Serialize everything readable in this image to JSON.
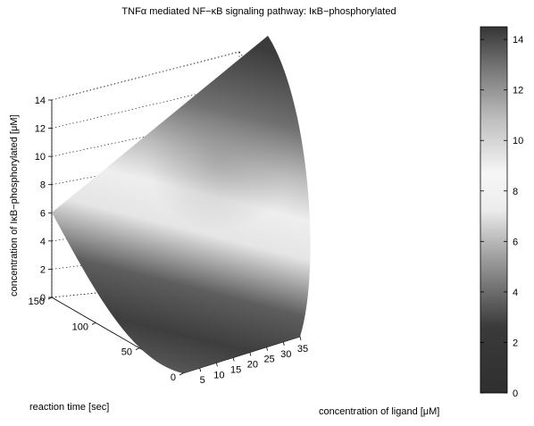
{
  "chart_data": {
    "type": "surface",
    "title": "TNFα mediated NF−κB signaling pathway: IκB−phosphorylated",
    "xlabel": "concentration of ligand [μM]",
    "ylabel": "reaction time [sec]",
    "zlabel": "concentration of IκB−phosphorylated [μM]",
    "x_ticks": [
      5,
      10,
      15,
      20,
      25,
      30,
      35
    ],
    "y_ticks": [
      0,
      50,
      100,
      150
    ],
    "z_ticks": [
      0,
      2,
      4,
      6,
      8,
      10,
      12,
      14
    ],
    "xlim": [
      0,
      35
    ],
    "ylim": [
      0,
      150
    ],
    "zlim": [
      0,
      14
    ],
    "grid": true,
    "colormap": "gray",
    "colorbar": {
      "position": "right",
      "ticks": [
        0,
        2,
        4,
        6,
        8,
        10,
        12,
        14
      ],
      "clim": [
        0,
        14.5
      ]
    },
    "surface_profile": {
      "description_axis": "ligand",
      "samples": [
        {
          "ligand": 0,
          "time": 150,
          "value": 5.8
        },
        {
          "ligand": 35,
          "time": 150,
          "value": 14.4
        },
        {
          "ligand": 0,
          "time": 0,
          "value": 0.3
        },
        {
          "ligand": 35,
          "time": 0,
          "value": 0.5
        }
      ]
    }
  }
}
